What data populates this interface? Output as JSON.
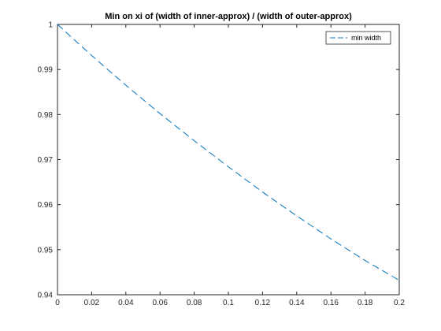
{
  "chart_data": {
    "type": "line",
    "title": "Min on xi of (width of inner-approx) / (width of outer-approx)",
    "xlabel": "",
    "ylabel": "",
    "xlim": [
      0,
      0.2
    ],
    "ylim": [
      0.94,
      1
    ],
    "xticks": [
      0,
      0.02,
      0.04,
      0.06,
      0.08,
      0.1,
      0.12,
      0.14,
      0.16,
      0.18,
      0.2
    ],
    "xtick_labels": [
      "0",
      "0.02",
      "0.04",
      "0.06",
      "0.08",
      "0.1",
      "0.12",
      "0.14",
      "0.16",
      "0.18",
      "0.2"
    ],
    "yticks": [
      0.94,
      0.95,
      0.96,
      0.97,
      0.98,
      0.99,
      1
    ],
    "ytick_labels": [
      "0.94",
      "0.95",
      "0.96",
      "0.97",
      "0.98",
      "0.99",
      "1"
    ],
    "grid": false,
    "legend_position": "top-right",
    "series": [
      {
        "name": "min width",
        "color": "#0072bd",
        "line_style": "dashed",
        "x": [
          0,
          0.02,
          0.04,
          0.06,
          0.08,
          0.1,
          0.12,
          0.14,
          0.16,
          0.18,
          0.2
        ],
        "y": [
          1.0,
          0.9931,
          0.9865,
          0.9802,
          0.9742,
          0.9684,
          0.9628,
          0.9575,
          0.9524,
          0.9476,
          0.9432
        ]
      }
    ]
  }
}
